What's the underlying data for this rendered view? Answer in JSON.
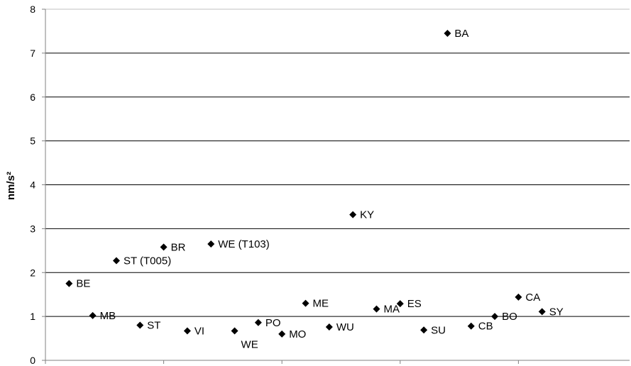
{
  "chart_data": {
    "type": "scatter",
    "title": "",
    "xlabel": "",
    "ylabel": "nm/s²",
    "ylim": [
      0,
      8
    ],
    "yticks": [
      0,
      1,
      2,
      3,
      4,
      5,
      6,
      7,
      8
    ],
    "grid": true,
    "legend": "none",
    "marker": "diamond",
    "colors": {
      "marker": "#000000",
      "grid": "#000000",
      "axis": "#808080"
    },
    "points": [
      {
        "label": "BE",
        "y": 1.75
      },
      {
        "label": "MB",
        "y": 1.02
      },
      {
        "label": "ST (T005)",
        "y": 2.27
      },
      {
        "label": "ST",
        "y": 0.8
      },
      {
        "label": "BR",
        "y": 2.58
      },
      {
        "label": "VI",
        "y": 0.67
      },
      {
        "label": "WE (T103)",
        "y": 2.65
      },
      {
        "label": "WE",
        "y": 0.67
      },
      {
        "label": "PO",
        "y": 0.86
      },
      {
        "label": "MO",
        "y": 0.6
      },
      {
        "label": "ME",
        "y": 1.3
      },
      {
        "label": "WU",
        "y": 0.76
      },
      {
        "label": "KY",
        "y": 3.32
      },
      {
        "label": "MA",
        "y": 1.17
      },
      {
        "label": "ES",
        "y": 1.29
      },
      {
        "label": "SU",
        "y": 0.69
      },
      {
        "label": "BA",
        "y": 7.45
      },
      {
        "label": "CB",
        "y": 0.78
      },
      {
        "label": "BO",
        "y": 1.0
      },
      {
        "label": "CA",
        "y": 1.44
      },
      {
        "label": "SY",
        "y": 1.11
      }
    ]
  }
}
